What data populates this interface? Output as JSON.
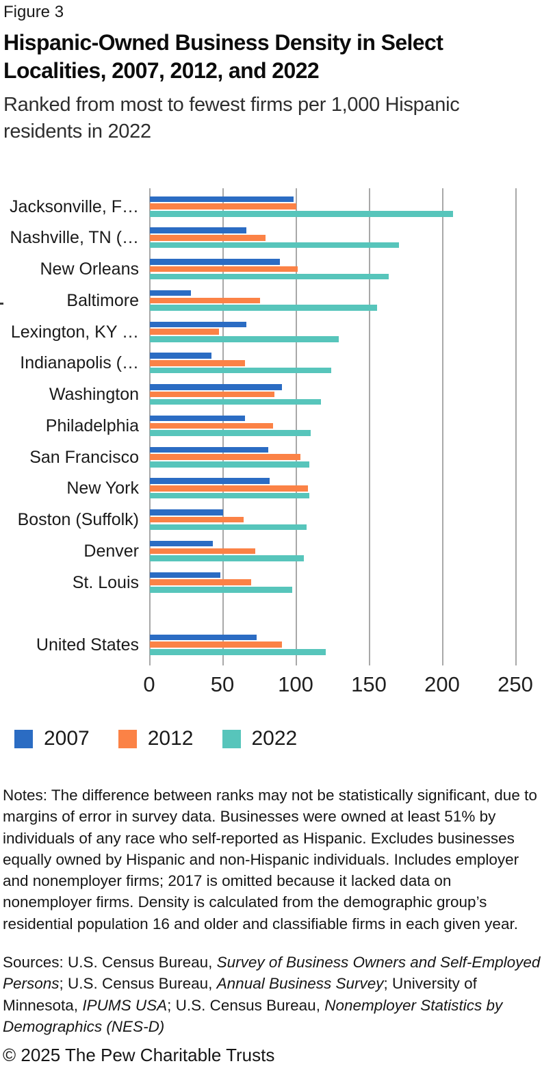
{
  "header": {
    "figure_label": "Figure 3",
    "title": "Hispanic-Owned Business Density in Select Localities, 2007, 2012, and 2022",
    "subtitle": "Ranked from most to fewest firms per 1,000 Hispanic residents in 2022"
  },
  "chart_data": {
    "type": "bar",
    "orientation": "horizontal",
    "title": "Hispanic-Owned Business Density in Select Localities, 2007, 2012, and 2022",
    "subtitle": "Ranked from most to fewest firms per 1,000 Hispanic residents in 2022",
    "xlabel": "",
    "ylabel": "",
    "categories": [
      "Jacksonville, F…",
      "Nashville, TN (…",
      "New Orleans",
      "Baltimore",
      "Lexington, KY …",
      "Indianapolis (…",
      "Washington",
      "Philadelphia",
      "San Francisco",
      "New York",
      "Boston (Suffolk)",
      "Denver",
      "St. Louis",
      "United States"
    ],
    "series": [
      {
        "name": "2007",
        "color": "#2b6cc3",
        "values": [
          98,
          66,
          89,
          28,
          66,
          42,
          90,
          65,
          81,
          82,
          50,
          43,
          48,
          73
        ]
      },
      {
        "name": "2012",
        "color": "#fb8246",
        "values": [
          100,
          79,
          101,
          75,
          47,
          65,
          85,
          84,
          103,
          108,
          64,
          72,
          69,
          90
        ]
      },
      {
        "name": "2022",
        "color": "#57c5bb",
        "values": [
          207,
          170,
          163,
          155,
          129,
          124,
          117,
          110,
          109,
          109,
          107,
          105,
          97,
          120
        ]
      }
    ],
    "xlim": [
      0,
      250
    ],
    "xticks": [
      0,
      50,
      100,
      150,
      200,
      250
    ],
    "grid": "vertical-gridlines-on",
    "gridline_color": "#a8a8a8",
    "legend_position": "bottom-left",
    "gap_before_last_category": true
  },
  "notes": {
    "text": "Notes: The difference between ranks may not be statistically significant, due to margins of error in survey data. Businesses were owned at least 51% by individuals of any race who self-reported as Hispanic. Excludes businesses equally owned by Hispanic and non-Hispanic individuals. Includes employer and nonemployer firms; 2017 is omitted because it lacked data on nonemployer firms. Density is calculated from the demographic group’s residential population 16 and older and classifiable firms in each given year."
  },
  "sources": {
    "segments": [
      {
        "text": "Sources: U.S. Census Bureau, ",
        "italic": false
      },
      {
        "text": "Survey of Business Owners and Self-Employed Persons",
        "italic": true
      },
      {
        "text": "; U.S. Census Bureau, ",
        "italic": false
      },
      {
        "text": "Annual Business Survey",
        "italic": true
      },
      {
        "text": "; University of Minnesota, ",
        "italic": false
      },
      {
        "text": "IPUMS USA",
        "italic": true
      },
      {
        "text": "; U.S. Census Bureau, ",
        "italic": false
      },
      {
        "text": "Nonemployer Statistics by Demographics (NES-D)",
        "italic": true
      }
    ]
  },
  "footer": {
    "copyright": "© 2025 The Pew Charitable Trusts"
  }
}
